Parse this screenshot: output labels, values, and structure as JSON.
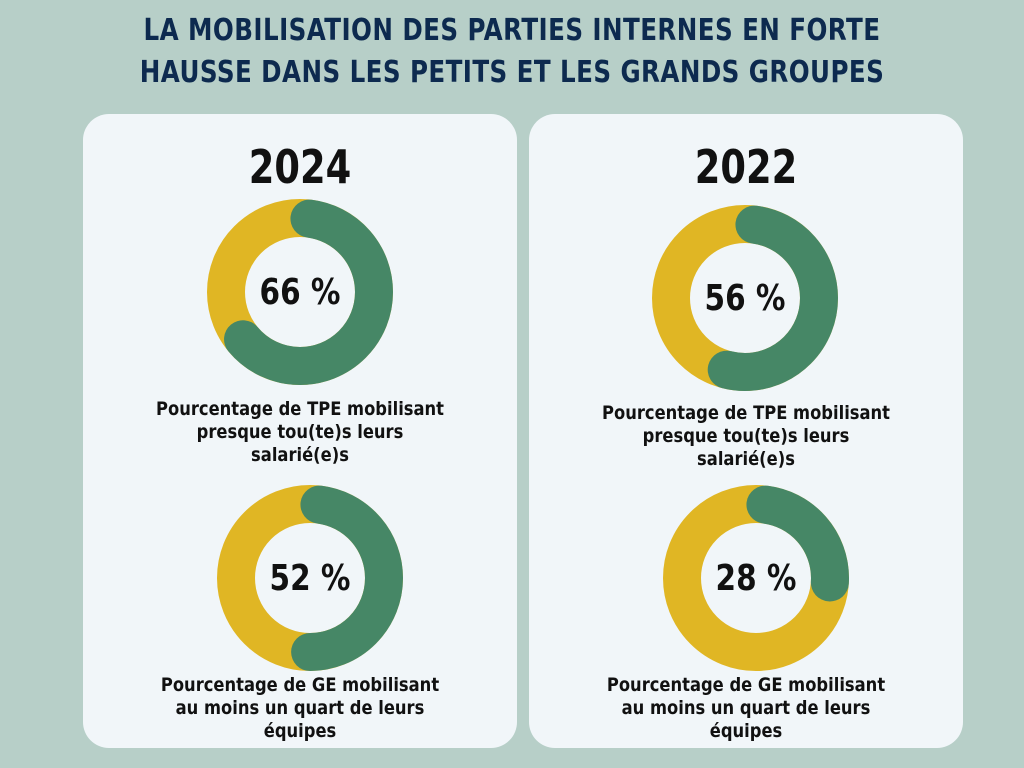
{
  "title": {
    "line1": "LA MOBILISATION DES PARTIES INTERNES EN FORTE",
    "line2": "HAUSSE DANS LES PETITS ET LES GRANDS GROUPES"
  },
  "colors": {
    "highlight": "#468766",
    "remainder": "#e0b624",
    "background": "#b7cfc8",
    "panel": "#f1f6f9",
    "title": "#0d2a4f"
  },
  "chart_data": [
    {
      "type": "pie",
      "year": "2024",
      "value": 66,
      "label": "66 %",
      "caption": [
        "Pourcentage de TPE mobilisant",
        "presque tou(te)s leurs",
        "salarié(e)s"
      ]
    },
    {
      "type": "pie",
      "year": "2024",
      "value": 52,
      "label": "52 %",
      "caption": [
        "Pourcentage de GE mobilisant",
        "au moins un quart de leurs",
        "équipes"
      ]
    },
    {
      "type": "pie",
      "year": "2022",
      "value": 56,
      "label": "56 %",
      "caption": [
        "Pourcentage de TPE mobilisant",
        "presque tou(te)s leurs",
        "salarié(e)s"
      ]
    },
    {
      "type": "pie",
      "year": "2022",
      "value": 28,
      "label": "28 %",
      "caption": [
        "Pourcentage de GE mobilisant",
        "au moins un quart de leurs",
        "équipes"
      ]
    }
  ]
}
